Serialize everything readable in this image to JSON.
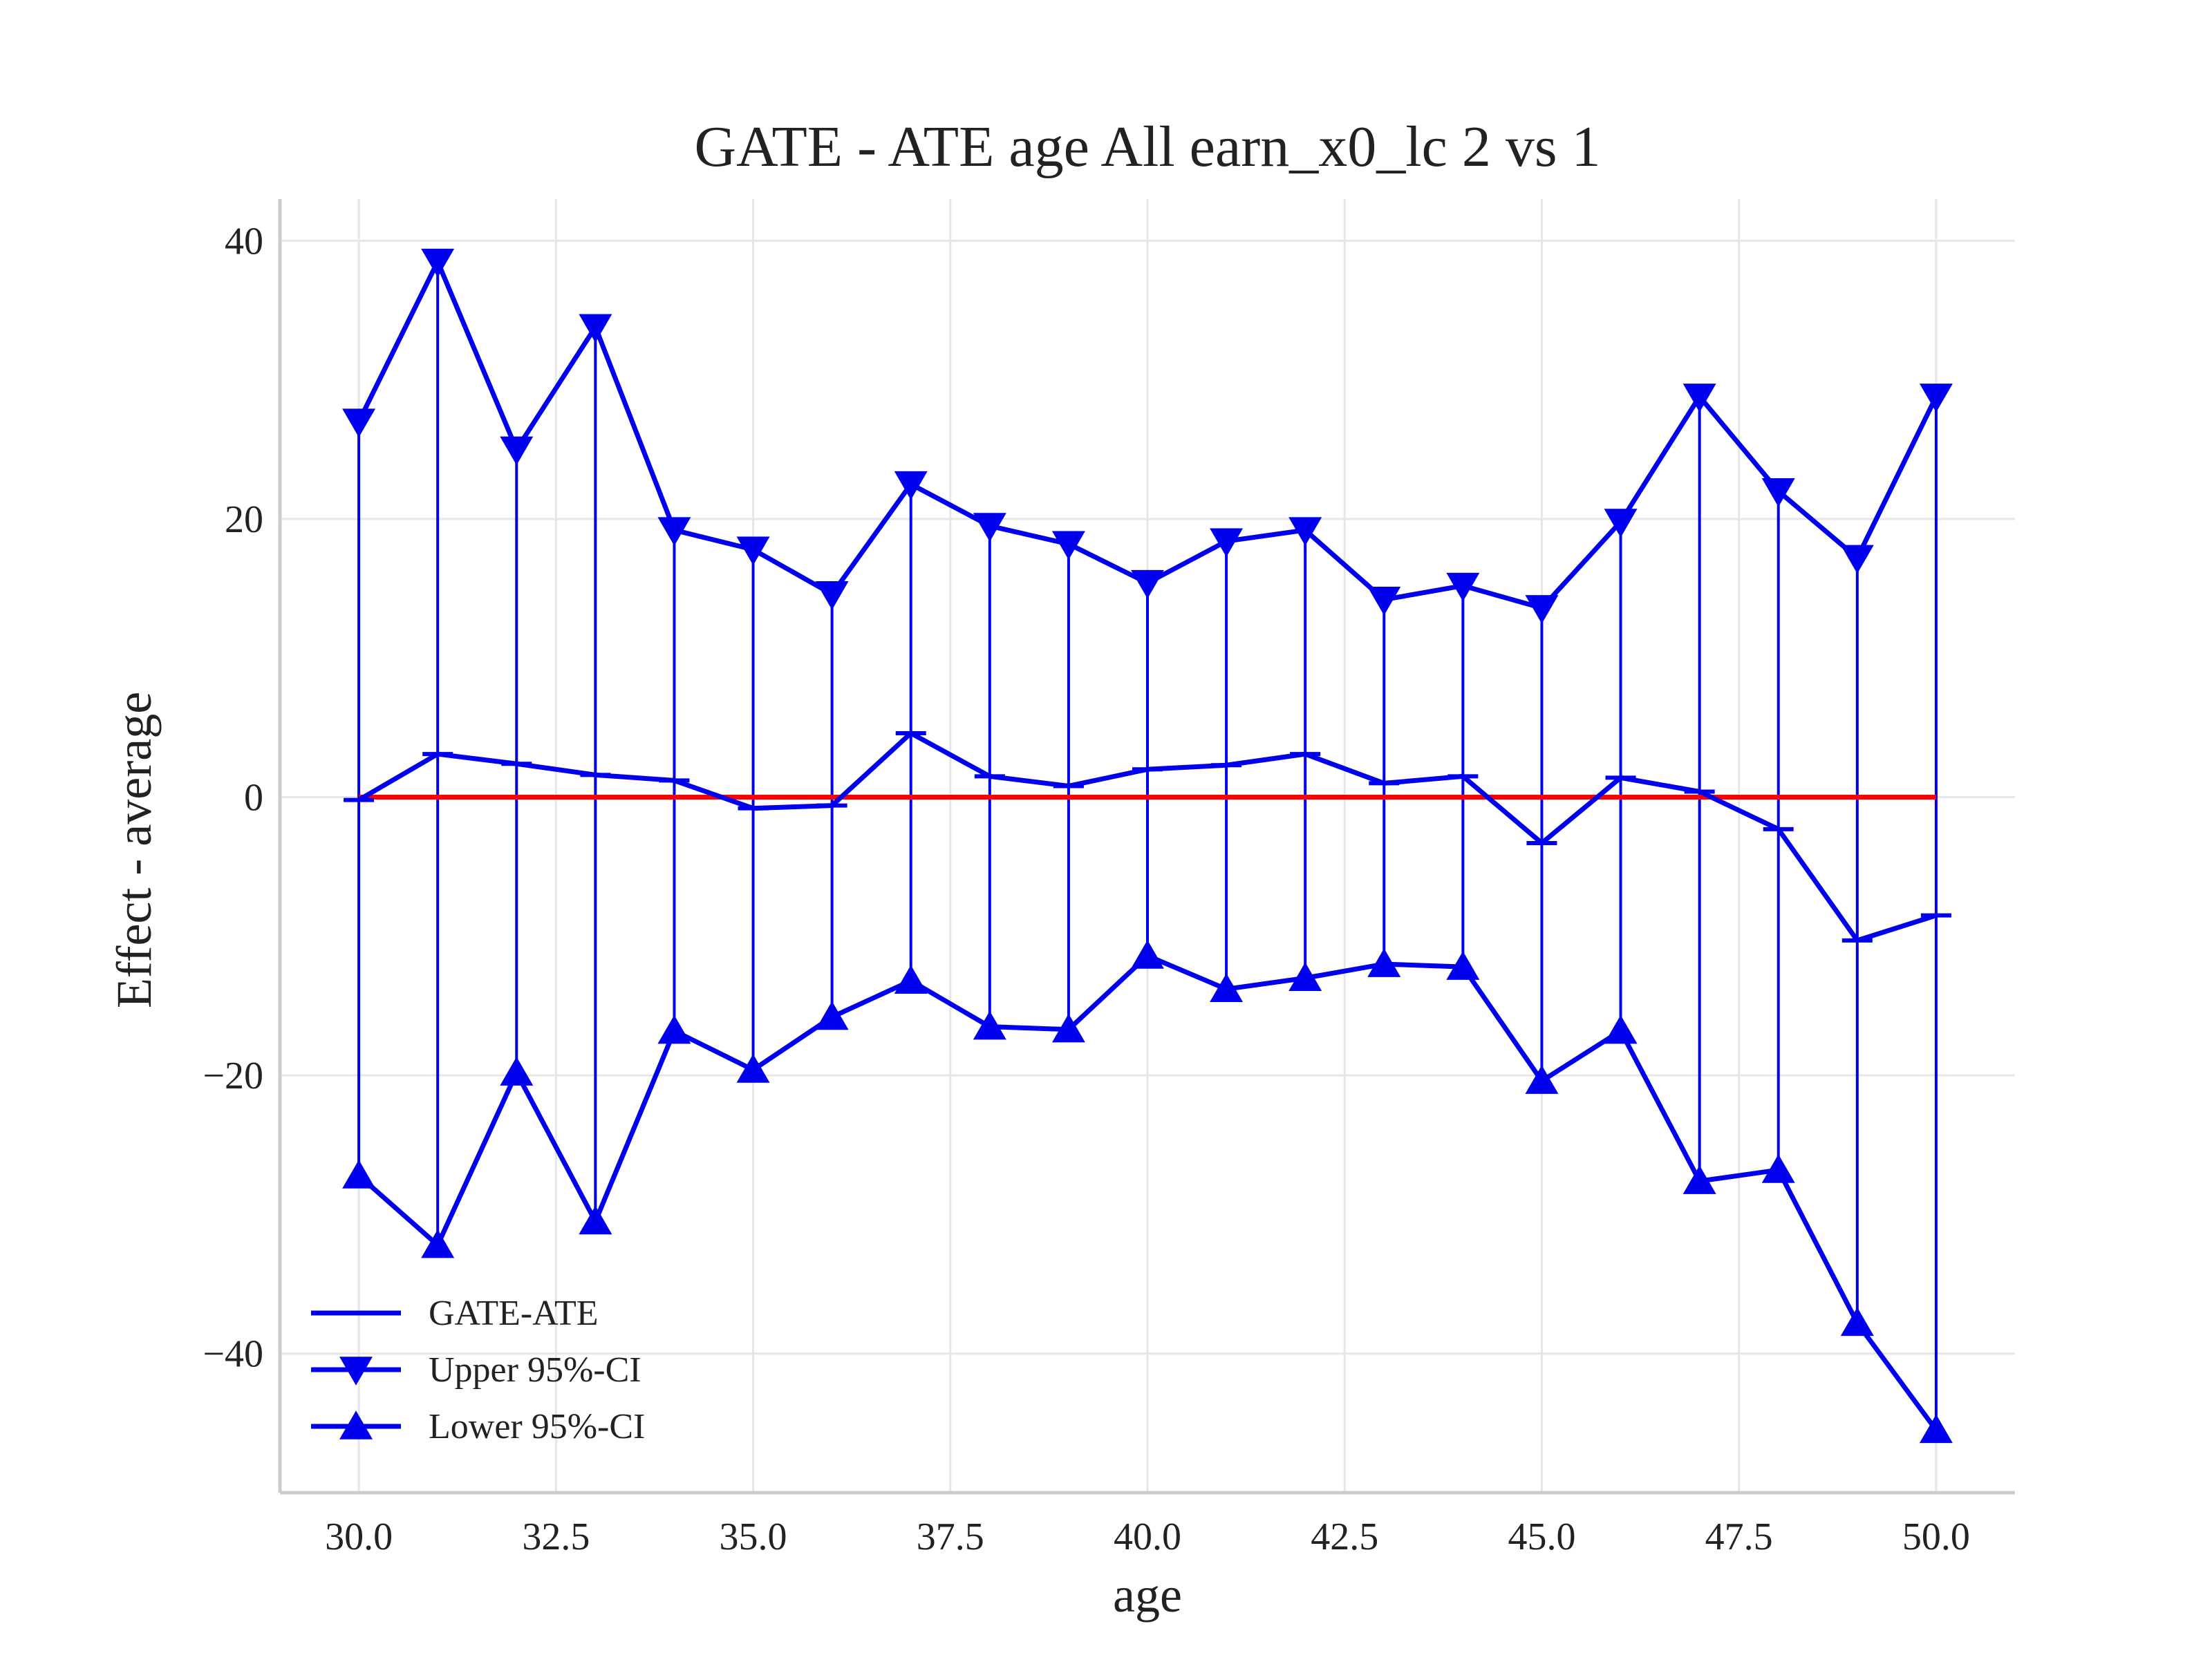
{
  "chart_data": {
    "type": "line",
    "title": "GATE - ATE age All earn_x0_lc  2 vs 1",
    "xlabel": "age",
    "ylabel": "Effect - average",
    "xlim": [
      29.0,
      51.0
    ],
    "ylim": [
      -50.0,
      43.0
    ],
    "xticks": [
      "30.0",
      "32.5",
      "35.0",
      "37.5",
      "40.0",
      "42.5",
      "45.0",
      "47.5",
      "50.0"
    ],
    "yticks": [
      "40",
      "20",
      "0",
      "−20",
      "−40"
    ],
    "xtick_values": [
      30,
      32.5,
      35,
      37.5,
      40,
      42.5,
      45,
      47.5,
      50
    ],
    "ytick_values": [
      40,
      20,
      0,
      -20,
      -40
    ],
    "grid": true,
    "legend_position": "lower-left",
    "x": [
      30,
      31,
      32,
      33,
      34,
      35,
      36,
      37,
      38,
      39,
      40,
      41,
      42,
      43,
      44,
      45,
      46,
      47,
      48,
      49,
      50
    ],
    "series": [
      {
        "name": "GATE-ATE",
        "marker": "hline",
        "values": [
          -0.2,
          3.1,
          2.4,
          1.6,
          1.2,
          -0.8,
          -0.6,
          4.6,
          1.5,
          0.8,
          2.0,
          2.3,
          3.1,
          1.0,
          1.5,
          -3.3,
          1.4,
          0.4,
          -2.3,
          -10.3,
          -8.5
        ]
      },
      {
        "name": "Upper 95%-CI",
        "marker": "triangle-down",
        "values": [
          27.0,
          38.5,
          25.0,
          33.8,
          19.2,
          17.8,
          14.6,
          22.5,
          19.5,
          18.2,
          15.4,
          18.4,
          19.2,
          14.2,
          15.2,
          13.6,
          19.8,
          28.8,
          22.0,
          17.2,
          28.8
        ]
      },
      {
        "name": "Lower 95%-CI",
        "marker": "triangle-up",
        "values": [
          -27.2,
          -32.2,
          -19.8,
          -30.5,
          -16.8,
          -19.6,
          -15.8,
          -13.2,
          -16.5,
          -16.7,
          -11.4,
          -13.8,
          -13.0,
          -12.0,
          -12.2,
          -20.4,
          -16.8,
          -27.6,
          -26.8,
          -37.8,
          -45.5
        ]
      }
    ],
    "reference_line": {
      "y": 0,
      "color": "#ff0000"
    },
    "series_color": "#0000ee"
  }
}
